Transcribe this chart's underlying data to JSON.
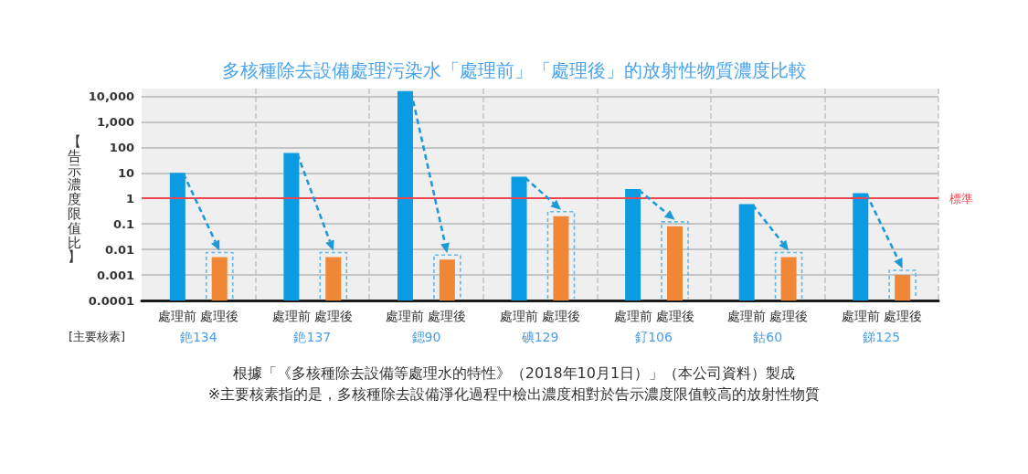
{
  "chart_data": {
    "type": "bar",
    "title": "多核種除去設備處理污染水「處理前」「處理後」的放射性物質濃度比較",
    "xlabel": "[主要核素]",
    "ylabel": "【告示濃度限值比】",
    "categories": [
      "銫134",
      "銫137",
      "鍶90",
      "碘129",
      "釕106",
      "鈷60",
      "銻125"
    ],
    "series": [
      {
        "name": "處理前",
        "color": "#0b9be2",
        "values": [
          10,
          60,
          16000,
          7,
          2.3,
          0.6,
          1.6
        ]
      },
      {
        "name": "處理後",
        "color": "#ef8737",
        "values": [
          0.005,
          0.005,
          0.004,
          0.2,
          0.08,
          0.005,
          0.001
        ]
      }
    ],
    "log": true,
    "ylim": [
      0.0001,
      20000
    ],
    "yticks": [
      0.0001,
      0.001,
      0.01,
      0.1,
      1,
      10,
      100,
      {
        "value": 1000,
        "label": "1,000"
      },
      {
        "value": 10000,
        "label": "10,000"
      }
    ],
    "grid": true,
    "ref_lines": [
      {
        "axis": "y",
        "value": 1,
        "label": "標準",
        "color": "#f0444f"
      }
    ],
    "annotations": [
      "根據「《多核種除去設備等處理水的特性》（2018年10月1日）」（本公司資料）製成",
      "※主要核素指的是，多核種除去設備淨化過程中檢出濃度相對於告示濃度限值較高的放射性物質"
    ]
  }
}
